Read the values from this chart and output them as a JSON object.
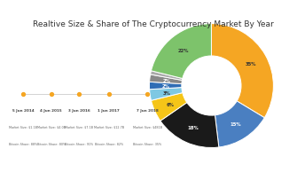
{
  "title": "Realtive Size & Share of The Cryptocurrency Market By Year",
  "title_fontsize": 6.5,
  "pie_data": [
    35,
    15,
    18,
    6,
    3,
    2,
    2,
    1,
    22
  ],
  "pie_colors": [
    "#f5a623",
    "#4a7fc1",
    "#1a1a1a",
    "#f5c518",
    "#7ec8e3",
    "#2f6db5",
    "#888888",
    "#aaaaaa",
    "#7dc36b"
  ],
  "pie_labels": [
    "35%",
    "15%",
    "18%",
    "6%",
    "3%",
    "2%",
    "2%",
    "",
    "22%"
  ],
  "pie_label_colors": [
    "#333333",
    "#ffffff",
    "#ffffff",
    "#333333",
    "#333333",
    "#ffffff",
    "#ffffff",
    "#333333",
    "#333333"
  ],
  "timeline_labels": [
    "5 Jun 2014",
    "4 Jun 2015",
    "3 Jun 2016",
    "1 Jun 2017",
    "7 Jun 2018"
  ],
  "timeline_sublabels": [
    "Market Size: $1.1B\nBitcoin Share: 88%",
    "Market Size: $4.0B\nBitcoin Share: 80%",
    "Market Size: $7.1B\nBitcoin Share: 91%",
    "Market Size: $12.7B\nBitcoin Share: 82%",
    "Market Size: $481B\nBitcoin Share: 35%"
  ],
  "marker_color": "#f5a623",
  "bg_color": "#ffffff"
}
